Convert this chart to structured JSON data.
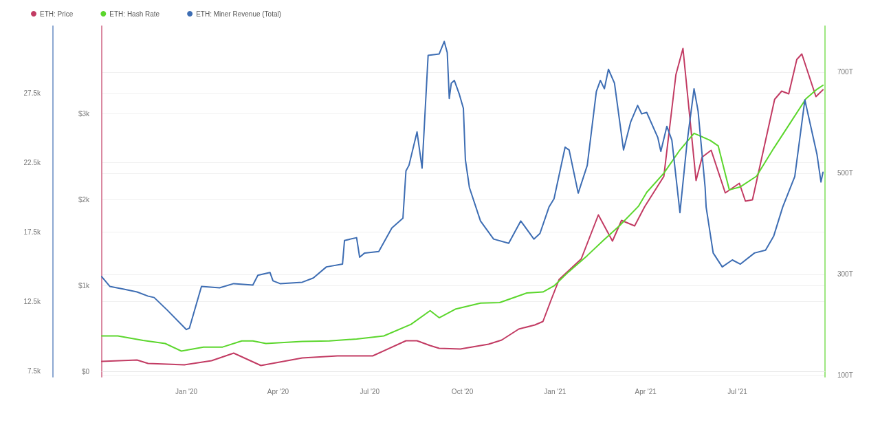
{
  "chart_data": {
    "type": "line",
    "legend": "top left",
    "grid": "y",
    "marker": "none",
    "line_style": "solid",
    "xlim": [
      "2019-10-09",
      "2021-09-26"
    ],
    "xticks": [
      {
        "value": "2020-01-01",
        "label": "Jan '20"
      },
      {
        "value": "2020-04-01",
        "label": "Apr '20"
      },
      {
        "value": "2020-07-01",
        "label": "Jul '20"
      },
      {
        "value": "2020-10-01",
        "label": "Oct '20"
      },
      {
        "value": "2021-01-01",
        "label": "Jan '21"
      },
      {
        "value": "2021-04-01",
        "label": "Apr '21"
      },
      {
        "value": "2021-07-01",
        "label": "Jul '21"
      }
    ],
    "ylim": [
      -60,
      4020
    ],
    "yticks": [
      {
        "value": 0,
        "label": "$0"
      },
      {
        "value": 1000,
        "label": "$1k"
      },
      {
        "value": 2000,
        "label": "$2k"
      },
      {
        "value": 3000,
        "label": "$3k"
      }
    ],
    "y2lim": [
      97,
      791
    ],
    "y2ticks": [
      {
        "value": 100,
        "label": "100T"
      },
      {
        "value": 300,
        "label": "300T"
      },
      {
        "value": 500,
        "label": "500T"
      },
      {
        "value": 700,
        "label": "700T"
      }
    ],
    "y3lim": [
      7100,
      32300
    ],
    "y3ticks": [
      {
        "value": 7500,
        "label": "7.5k"
      },
      {
        "value": 12500,
        "label": "12.5k"
      },
      {
        "value": 17500,
        "label": "17.5k"
      },
      {
        "value": 22500,
        "label": "22.5k"
      },
      {
        "value": 27500,
        "label": "27.5k"
      }
    ],
    "series": [
      {
        "name": "ETH: Price",
        "color": "#c23b63",
        "axis": "y",
        "x": [
          "2019-10-09",
          "2019-11-13",
          "2019-11-24",
          "2019-12-30",
          "2020-01-26",
          "2020-02-17",
          "2020-03-15",
          "2020-04-25",
          "2020-05-30",
          "2020-07-04",
          "2020-08-06",
          "2020-08-17",
          "2020-08-30",
          "2020-09-08",
          "2020-09-29",
          "2020-10-27",
          "2020-11-09",
          "2020-11-26",
          "2020-12-12",
          "2020-12-20",
          "2020-12-28",
          "2021-01-05",
          "2021-01-27",
          "2021-02-13",
          "2021-02-27",
          "2021-03-08",
          "2021-03-21",
          "2021-03-31",
          "2021-04-19",
          "2021-05-01",
          "2021-05-08",
          "2021-05-21",
          "2021-05-27",
          "2021-06-05",
          "2021-06-19",
          "2021-07-03",
          "2021-07-09",
          "2021-07-16",
          "2021-08-07",
          "2021-08-14",
          "2021-08-21",
          "2021-08-29",
          "2021-09-03",
          "2021-09-17",
          "2021-09-24"
        ],
        "values": [
          120,
          136,
          96,
          80,
          128,
          216,
          72,
          160,
          184,
          184,
          360,
          360,
          304,
          272,
          264,
          320,
          368,
          496,
          544,
          584,
          832,
          1072,
          1312,
          1824,
          1520,
          1760,
          1696,
          1920,
          2272,
          3456,
          3760,
          2224,
          2496,
          2576,
          2080,
          2192,
          1984,
          2000,
          3168,
          3264,
          3232,
          3632,
          3696,
          3200,
          3280
        ]
      },
      {
        "name": "ETH: Hash Rate",
        "color": "#5bd62c",
        "axis": "y2",
        "x": [
          "2019-10-09",
          "2019-10-25",
          "2019-11-19",
          "2019-12-11",
          "2019-12-27",
          "2020-01-18",
          "2020-02-06",
          "2020-02-25",
          "2020-03-07",
          "2020-03-20",
          "2020-04-25",
          "2020-05-22",
          "2020-06-18",
          "2020-07-15",
          "2020-08-11",
          "2020-08-30",
          "2020-09-08",
          "2020-09-24",
          "2020-10-19",
          "2020-11-07",
          "2020-12-04",
          "2020-12-20",
          "2020-12-31",
          "2021-01-14",
          "2021-02-02",
          "2021-02-18",
          "2021-03-06",
          "2021-03-25",
          "2021-04-02",
          "2021-04-19",
          "2021-05-05",
          "2021-05-19",
          "2021-06-04",
          "2021-06-12",
          "2021-06-23",
          "2021-07-04",
          "2021-07-20",
          "2021-08-06",
          "2021-08-22",
          "2021-09-07",
          "2021-09-18",
          "2021-09-24"
        ],
        "values": [
          178,
          178,
          169,
          163,
          148,
          156,
          156,
          168,
          168,
          163,
          167,
          168,
          172,
          178,
          201,
          228,
          214,
          231,
          243,
          244,
          263,
          265,
          277,
          304,
          337,
          367,
          396,
          435,
          462,
          500,
          546,
          579,
          565,
          554,
          467,
          473,
          494,
          549,
          598,
          647,
          666,
          674
        ]
      },
      {
        "name": "ETH: Miner Revenue (Total)",
        "color": "#3d6db3",
        "axis": "y3",
        "x": [
          "2019-10-09",
          "2019-10-17",
          "2019-10-31",
          "2019-11-13",
          "2019-11-24",
          "2019-11-30",
          "2019-12-13",
          "2020-01-01",
          "2020-01-04",
          "2020-01-16",
          "2020-02-03",
          "2020-02-17",
          "2020-03-07",
          "2020-03-12",
          "2020-03-24",
          "2020-03-27",
          "2020-04-03",
          "2020-04-25",
          "2020-05-06",
          "2020-05-19",
          "2020-06-04",
          "2020-06-06",
          "2020-06-18",
          "2020-06-21",
          "2020-06-26",
          "2020-07-10",
          "2020-07-23",
          "2020-08-03",
          "2020-08-06",
          "2020-08-09",
          "2020-08-17",
          "2020-08-22",
          "2020-08-28",
          "2020-09-08",
          "2020-09-13",
          "2020-09-16",
          "2020-09-18",
          "2020-09-20",
          "2020-09-23",
          "2020-09-28",
          "2020-10-02",
          "2020-10-04",
          "2020-10-08",
          "2020-10-19",
          "2020-11-01",
          "2020-11-16",
          "2020-11-28",
          "2020-12-11",
          "2020-12-17",
          "2020-12-26",
          "2020-12-31",
          "2021-01-11",
          "2021-01-15",
          "2021-01-24",
          "2021-02-02",
          "2021-02-11",
          "2021-02-15",
          "2021-02-19",
          "2021-02-23",
          "2021-03-01",
          "2021-03-10",
          "2021-03-17",
          "2021-03-24",
          "2021-03-28",
          "2021-04-02",
          "2021-04-13",
          "2021-04-16",
          "2021-04-22",
          "2021-04-27",
          "2021-05-05",
          "2021-05-12",
          "2021-05-19",
          "2021-05-23",
          "2021-05-30",
          "2021-05-31",
          "2021-06-07",
          "2021-06-16",
          "2021-06-26",
          "2021-07-04",
          "2021-07-18",
          "2021-07-29",
          "2021-08-06",
          "2021-08-15",
          "2021-08-27",
          "2021-09-06",
          "2021-09-18",
          "2021-09-22",
          "2021-09-24"
        ],
        "values": [
          14300,
          13600,
          13400,
          13200,
          12900,
          12800,
          11900,
          10500,
          10600,
          13600,
          13500,
          13800,
          13700,
          14400,
          14600,
          14000,
          13800,
          13900,
          14200,
          15000,
          15200,
          16900,
          17100,
          15700,
          16000,
          16100,
          17800,
          18500,
          21900,
          22300,
          24700,
          22100,
          30200,
          30300,
          31200,
          30400,
          27100,
          28200,
          28400,
          27400,
          26400,
          22700,
          20700,
          18300,
          17000,
          16700,
          18300,
          17000,
          17400,
          19300,
          19900,
          23600,
          23400,
          20300,
          22300,
          27600,
          28400,
          27800,
          29200,
          28200,
          23400,
          25400,
          26600,
          26000,
          26100,
          24300,
          23300,
          25100,
          24100,
          18900,
          23900,
          27800,
          26200,
          20700,
          19300,
          16000,
          15000,
          15500,
          15200,
          16000,
          16200,
          17200,
          19300,
          21500,
          27000,
          23100,
          21100,
          21800
        ]
      }
    ]
  }
}
